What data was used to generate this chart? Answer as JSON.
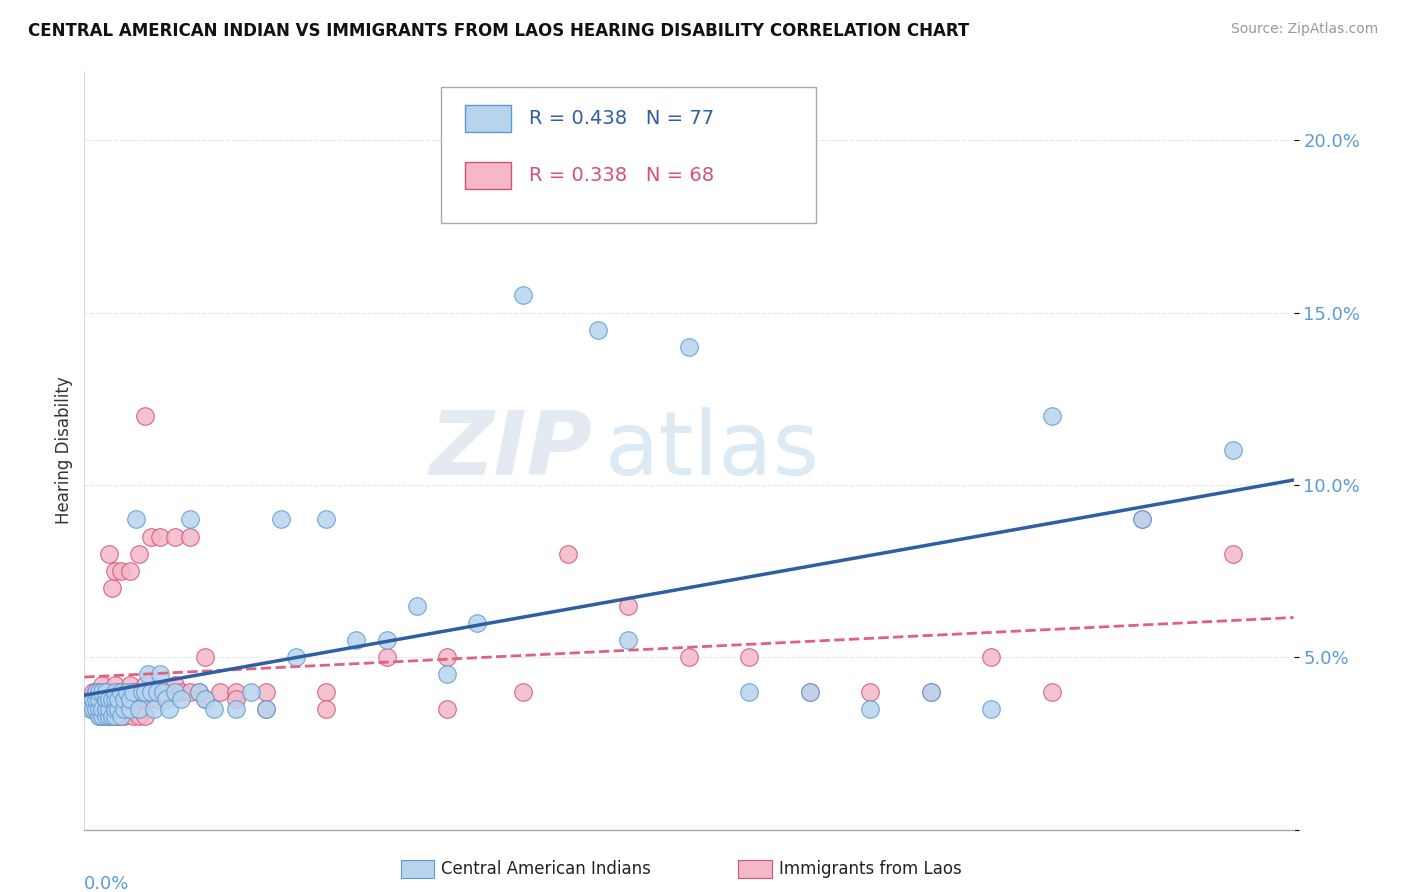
{
  "title": "CENTRAL AMERICAN INDIAN VS IMMIGRANTS FROM LAOS HEARING DISABILITY CORRELATION CHART",
  "source": "Source: ZipAtlas.com",
  "ylabel": "Hearing Disability",
  "x_min": 0.0,
  "x_max": 0.4,
  "y_min": 0.0,
  "y_max": 0.22,
  "blue_R": 0.438,
  "blue_N": 77,
  "pink_R": 0.338,
  "pink_N": 68,
  "blue_color": "#b8d4ed",
  "blue_edge": "#5b9bd5",
  "pink_color": "#f4b8c8",
  "pink_edge": "#d4507a",
  "blue_line_color": "#2e5fa3",
  "pink_line_color": "#e06080",
  "legend_label_blue": "Central American Indians",
  "legend_label_pink": "Immigrants from Laos",
  "watermark_zip": "ZIP",
  "watermark_atlas": "atlas",
  "tick_label_color": "#5b9bd5",
  "background_color": "#ffffff",
  "grid_color": "#e8e8e8",
  "blue_x": [
    0.002,
    0.003,
    0.003,
    0.004,
    0.004,
    0.004,
    0.005,
    0.005,
    0.005,
    0.005,
    0.006,
    0.006,
    0.006,
    0.007,
    0.007,
    0.007,
    0.007,
    0.008,
    0.008,
    0.008,
    0.009,
    0.009,
    0.01,
    0.01,
    0.01,
    0.01,
    0.011,
    0.011,
    0.012,
    0.012,
    0.013,
    0.013,
    0.014,
    0.015,
    0.015,
    0.016,
    0.017,
    0.018,
    0.019,
    0.02,
    0.021,
    0.022,
    0.023,
    0.024,
    0.025,
    0.026,
    0.027,
    0.028,
    0.03,
    0.032,
    0.035,
    0.038,
    0.04,
    0.043,
    0.05,
    0.055,
    0.06,
    0.065,
    0.07,
    0.08,
    0.09,
    0.1,
    0.11,
    0.12,
    0.13,
    0.145,
    0.17,
    0.18,
    0.2,
    0.22,
    0.24,
    0.26,
    0.28,
    0.3,
    0.32,
    0.35,
    0.38
  ],
  "blue_y": [
    0.035,
    0.035,
    0.038,
    0.035,
    0.038,
    0.04,
    0.033,
    0.035,
    0.038,
    0.04,
    0.033,
    0.035,
    0.04,
    0.033,
    0.035,
    0.038,
    0.04,
    0.033,
    0.035,
    0.038,
    0.033,
    0.038,
    0.033,
    0.035,
    0.038,
    0.04,
    0.035,
    0.038,
    0.033,
    0.04,
    0.035,
    0.038,
    0.04,
    0.035,
    0.038,
    0.04,
    0.09,
    0.035,
    0.04,
    0.04,
    0.045,
    0.04,
    0.035,
    0.04,
    0.045,
    0.04,
    0.038,
    0.035,
    0.04,
    0.038,
    0.09,
    0.04,
    0.038,
    0.035,
    0.035,
    0.04,
    0.035,
    0.09,
    0.05,
    0.09,
    0.055,
    0.055,
    0.065,
    0.045,
    0.06,
    0.155,
    0.145,
    0.055,
    0.14,
    0.04,
    0.04,
    0.035,
    0.04,
    0.035,
    0.12,
    0.09,
    0.11
  ],
  "pink_x": [
    0.002,
    0.003,
    0.003,
    0.004,
    0.004,
    0.005,
    0.005,
    0.005,
    0.006,
    0.006,
    0.006,
    0.007,
    0.007,
    0.008,
    0.008,
    0.009,
    0.009,
    0.01,
    0.01,
    0.01,
    0.011,
    0.011,
    0.012,
    0.012,
    0.013,
    0.013,
    0.014,
    0.015,
    0.015,
    0.016,
    0.016,
    0.017,
    0.017,
    0.018,
    0.018,
    0.019,
    0.02,
    0.02,
    0.021,
    0.022,
    0.023,
    0.024,
    0.025,
    0.026,
    0.028,
    0.03,
    0.032,
    0.035,
    0.038,
    0.04,
    0.045,
    0.05,
    0.06,
    0.08,
    0.1,
    0.12,
    0.145,
    0.16,
    0.18,
    0.2,
    0.22,
    0.24,
    0.26,
    0.28,
    0.3,
    0.32,
    0.35,
    0.38
  ],
  "pink_y": [
    0.038,
    0.035,
    0.04,
    0.035,
    0.04,
    0.033,
    0.035,
    0.04,
    0.033,
    0.038,
    0.042,
    0.035,
    0.04,
    0.033,
    0.04,
    0.035,
    0.04,
    0.033,
    0.038,
    0.042,
    0.033,
    0.04,
    0.035,
    0.04,
    0.033,
    0.04,
    0.038,
    0.035,
    0.042,
    0.033,
    0.04,
    0.035,
    0.04,
    0.033,
    0.04,
    0.038,
    0.033,
    0.042,
    0.038,
    0.04,
    0.04,
    0.038,
    0.04,
    0.04,
    0.04,
    0.042,
    0.04,
    0.04,
    0.04,
    0.038,
    0.04,
    0.04,
    0.04,
    0.04,
    0.05,
    0.05,
    0.04,
    0.08,
    0.065,
    0.05,
    0.05,
    0.04,
    0.04,
    0.04,
    0.05,
    0.04,
    0.09,
    0.08
  ],
  "extra_pink_x": [
    0.008,
    0.009,
    0.01,
    0.012,
    0.015,
    0.018,
    0.02,
    0.022,
    0.025,
    0.03,
    0.035,
    0.04,
    0.05,
    0.06,
    0.08,
    0.12
  ],
  "extra_pink_y": [
    0.08,
    0.07,
    0.075,
    0.075,
    0.075,
    0.08,
    0.12,
    0.085,
    0.085,
    0.085,
    0.085,
    0.05,
    0.038,
    0.035,
    0.035,
    0.035
  ]
}
